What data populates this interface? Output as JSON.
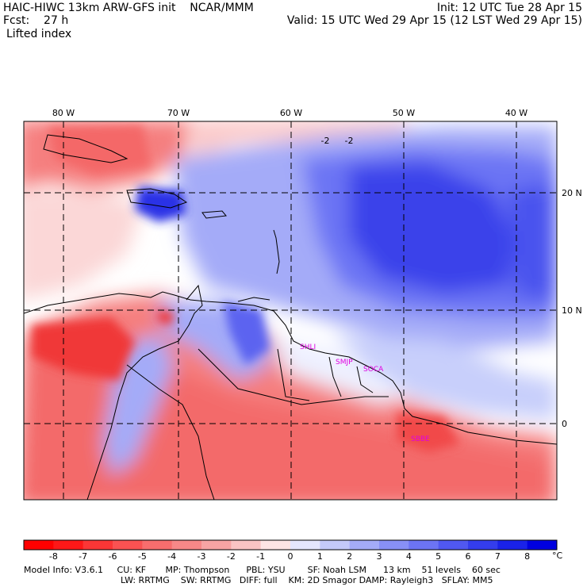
{
  "header": {
    "line1_left": "HAIC-HIWC 13km ARW-GFS init    NCAR/MMM",
    "line1_right": "Init: 12 UTC Tue 28 Apr 15",
    "line2_left": "Fcst:    27 h",
    "line2_right": "Valid: 15 UTC Wed 29 Apr 15 (12 LST Wed 29 Apr 15)",
    "line3_left": "Lifted index"
  },
  "map": {
    "lon_labels": [
      "80 W",
      "70 W",
      "60 W",
      "50 W",
      "40 W"
    ],
    "lat_labels": [
      "20 N",
      "10 N",
      "0"
    ],
    "contour_label": "-2",
    "stations": [
      "SHLI",
      "SMJP",
      "SOCA",
      "SBBE"
    ],
    "colors": {
      "negative_deep": "#f03838",
      "negative_mid": "#f57f7f",
      "negative_light": "#fbcaca",
      "neutral": "#ffffff",
      "positive_light": "#c8cffb",
      "positive_mid": "#7f8cf3",
      "positive_deep": "#2a33e6"
    }
  },
  "colorbar": {
    "ticks": [
      "-8",
      "-7",
      "-6",
      "-5",
      "-4",
      "-3",
      "-2",
      "-1",
      "0",
      "1",
      "2",
      "3",
      "4",
      "5",
      "6",
      "7",
      "8"
    ],
    "unit": "°C",
    "colors": [
      "#ff0000",
      "#fd1818",
      "#fb3636",
      "#f95252",
      "#f86d6d",
      "#f88888",
      "#f8a4a4",
      "#fac4c4",
      "#fde4e4",
      "#e4e6fd",
      "#c4c9fa",
      "#a4abf8",
      "#8890f6",
      "#6c74f4",
      "#5058f1",
      "#343ded",
      "#1a22e8",
      "#0000e0"
    ]
  },
  "footer": {
    "line1": "Model Info: V3.6.1     CU: KF       MP: Thompson      PBL: YSU        SF: Noah LSM      13 km    51 levels    60 sec",
    "line2": "LW: RRTMG    SW: RRTMG   DIFF: full    KM: 2D Smagor DAMP: Rayleigh3   SFLAY: MM5"
  }
}
